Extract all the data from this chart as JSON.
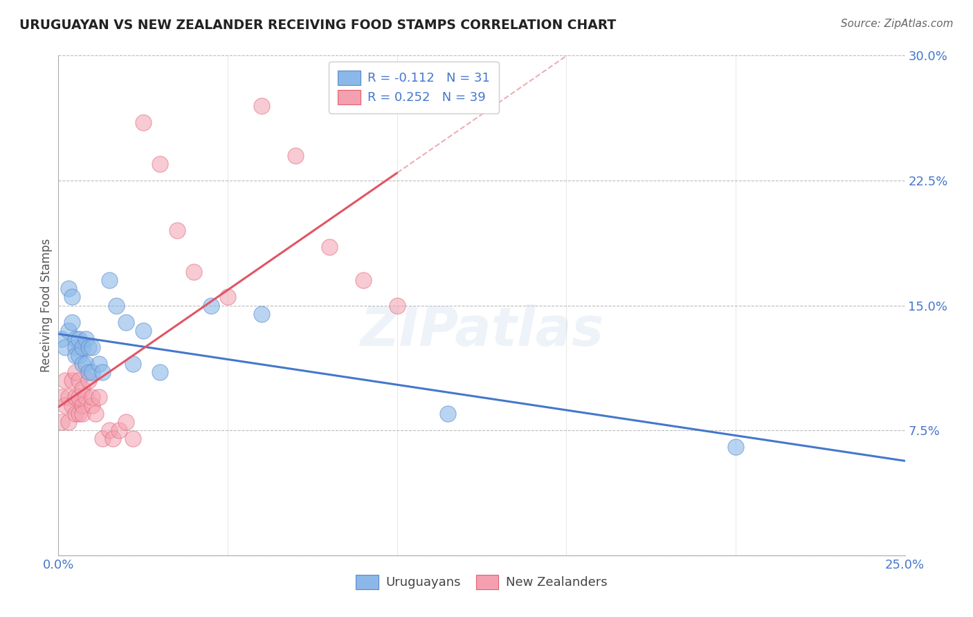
{
  "title": "URUGUAYAN VS NEW ZEALANDER RECEIVING FOOD STAMPS CORRELATION CHART",
  "source": "Source: ZipAtlas.com",
  "ylabel_label": "Receiving Food Stamps",
  "x_ticks": [
    0.0,
    0.05,
    0.1,
    0.15,
    0.2,
    0.25
  ],
  "x_tick_labels": [
    "0.0%",
    "",
    "",
    "",
    "",
    "25.0%"
  ],
  "y_ticks": [
    0.0,
    0.075,
    0.15,
    0.225,
    0.3
  ],
  "y_tick_labels": [
    "",
    "7.5%",
    "15.0%",
    "22.5%",
    "30.0%"
  ],
  "xlim": [
    0.0,
    0.25
  ],
  "ylim": [
    0.0,
    0.3
  ],
  "blue_color": "#8BB8E8",
  "pink_color": "#F4A0B0",
  "blue_edge_color": "#5588CC",
  "pink_edge_color": "#E06070",
  "blue_line_color": "#4477CC",
  "pink_line_color": "#E05565",
  "pink_dash_color": "#E8A0A8",
  "watermark": "ZIPatlas",
  "blue_scatter_x": [
    0.001,
    0.002,
    0.003,
    0.003,
    0.004,
    0.004,
    0.005,
    0.005,
    0.005,
    0.006,
    0.006,
    0.007,
    0.007,
    0.008,
    0.008,
    0.009,
    0.009,
    0.01,
    0.01,
    0.012,
    0.013,
    0.015,
    0.017,
    0.02,
    0.022,
    0.025,
    0.03,
    0.045,
    0.06,
    0.115,
    0.2
  ],
  "blue_scatter_y": [
    0.13,
    0.125,
    0.16,
    0.135,
    0.155,
    0.14,
    0.13,
    0.125,
    0.12,
    0.13,
    0.12,
    0.125,
    0.115,
    0.13,
    0.115,
    0.125,
    0.11,
    0.125,
    0.11,
    0.115,
    0.11,
    0.165,
    0.15,
    0.14,
    0.115,
    0.135,
    0.11,
    0.15,
    0.145,
    0.085,
    0.065
  ],
  "pink_scatter_x": [
    0.001,
    0.001,
    0.002,
    0.002,
    0.003,
    0.003,
    0.004,
    0.004,
    0.005,
    0.005,
    0.005,
    0.006,
    0.006,
    0.006,
    0.007,
    0.007,
    0.007,
    0.008,
    0.009,
    0.01,
    0.01,
    0.011,
    0.012,
    0.013,
    0.015,
    0.016,
    0.018,
    0.02,
    0.022,
    0.025,
    0.03,
    0.035,
    0.04,
    0.05,
    0.06,
    0.07,
    0.08,
    0.09,
    0.1
  ],
  "pink_scatter_y": [
    0.08,
    0.095,
    0.09,
    0.105,
    0.08,
    0.095,
    0.09,
    0.105,
    0.085,
    0.095,
    0.11,
    0.095,
    0.085,
    0.105,
    0.09,
    0.085,
    0.1,
    0.095,
    0.105,
    0.09,
    0.095,
    0.085,
    0.095,
    0.07,
    0.075,
    0.07,
    0.075,
    0.08,
    0.07,
    0.26,
    0.235,
    0.195,
    0.17,
    0.155,
    0.27,
    0.24,
    0.185,
    0.165,
    0.15
  ]
}
